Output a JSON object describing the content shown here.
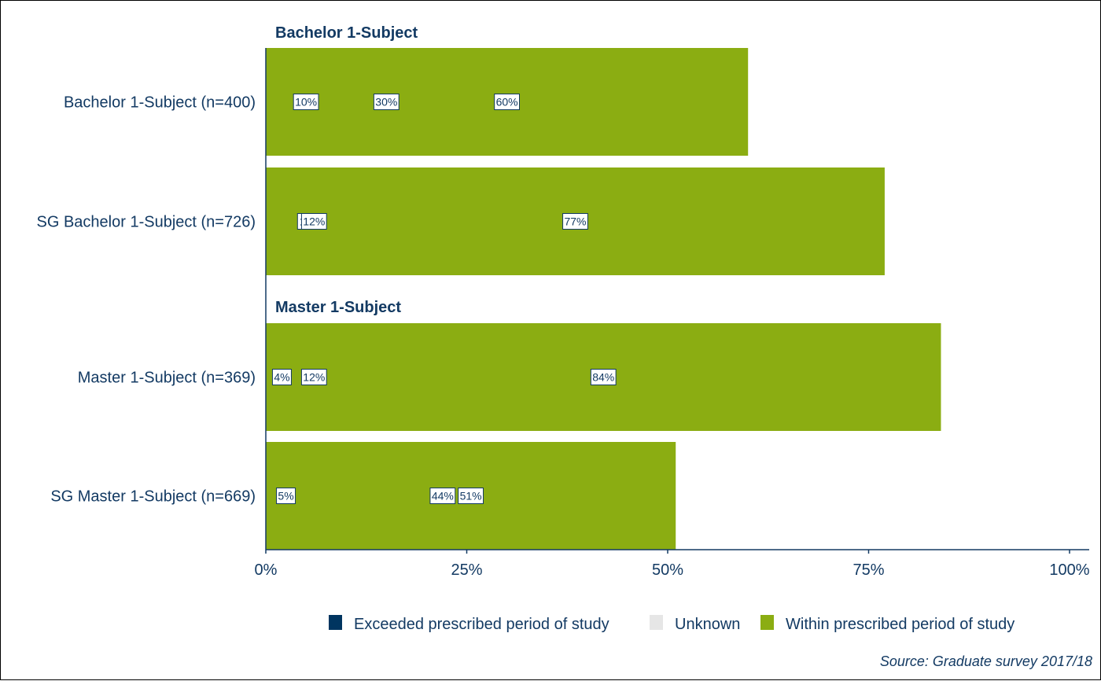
{
  "chart_data": {
    "type": "bar",
    "orientation": "horizontal",
    "stacked": true,
    "percent": true,
    "groups": [
      {
        "title": "Bachelor 1-Subject",
        "categories": [
          "Bachelor 1-Subject (n=400)",
          "SG Bachelor 1-Subject (n=726)"
        ]
      },
      {
        "title": "Master 1-Subject",
        "categories": [
          "Master 1-Subject (n=369)",
          "SG Master 1-Subject (n=669)"
        ]
      }
    ],
    "categories": [
      "Bachelor 1-Subject (n=400)",
      "SG Bachelor 1-Subject (n=726)",
      "Master 1-Subject (n=369)",
      "SG Master 1-Subject (n=669)"
    ],
    "series": [
      {
        "name": "Exceeded prescribed period of study",
        "color": "#003560",
        "values": [
          30,
          11,
          12,
          44
        ]
      },
      {
        "name": "Unknown",
        "color": "#e6e6e6",
        "values": [
          10,
          12,
          4,
          5
        ]
      },
      {
        "name": "Within prescribed period of study",
        "color": "#8bad12",
        "values": [
          60,
          77,
          84,
          51
        ]
      }
    ],
    "data_labels": [
      [
        "30%",
        "11%",
        "12%",
        "44%"
      ],
      [
        "10%",
        "12%",
        "4%",
        "5%"
      ],
      [
        "60%",
        "77%",
        "84%",
        "51%"
      ]
    ],
    "xlim": [
      0,
      100
    ],
    "xticks": [
      "0%",
      "25%",
      "50%",
      "75%",
      "100%"
    ],
    "xlabel": "",
    "ylabel": "",
    "grid": false,
    "legend_position": "bottom",
    "axis_color": "#133a63",
    "text_color": "#133a63",
    "caption": "Source: Graduate survey 2017/18"
  }
}
